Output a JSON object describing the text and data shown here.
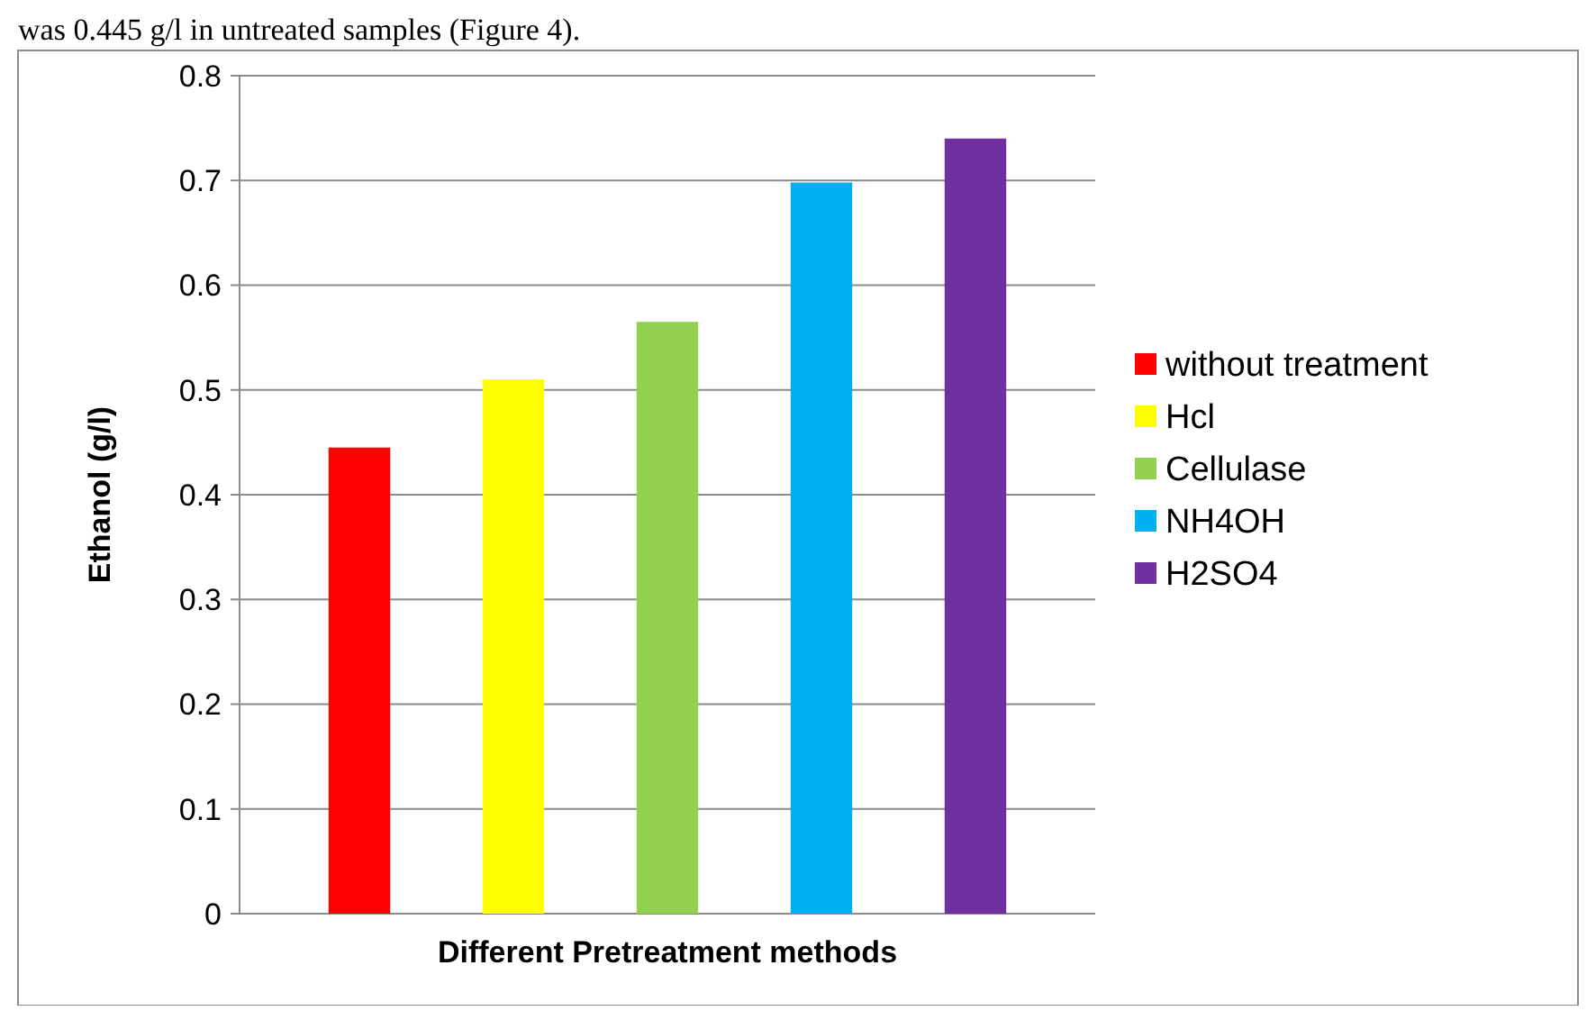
{
  "chart_data": {
    "type": "bar",
    "xlabel": "Different Pretreatment methods",
    "ylabel": "Ethanol (g/l)",
    "annotations": [
      "was 0.445 g/l in untreated samples (Figure 4)."
    ],
    "categories": [
      null
    ],
    "series": [
      {
        "name": "without treatment",
        "color": "#ff0000",
        "values": [
          0.445
        ]
      },
      {
        "name": "Hcl",
        "color": "#ffff00",
        "values": [
          0.51
        ]
      },
      {
        "name": "Cellulase",
        "color": "#92d050",
        "values": [
          0.565
        ]
      },
      {
        "name": "NH4OH",
        "color": "#00b0f0",
        "values": [
          0.698
        ]
      },
      {
        "name": "H2SO4",
        "color": "#7030a0",
        "values": [
          0.74
        ]
      }
    ],
    "ylim": [
      0,
      0.8
    ],
    "yticks": [
      0,
      0.1,
      0.2,
      0.3,
      0.4,
      0.5,
      0.6,
      0.7,
      0.8
    ],
    "grid": "y",
    "legend": "right"
  }
}
